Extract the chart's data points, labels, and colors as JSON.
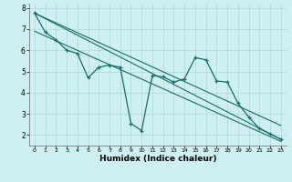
{
  "bg_color": "#cef0f0",
  "grid_color": "#afd8d8",
  "line_color": "#1a6b6b",
  "xlabel": "Humidex (Indice chaleur)",
  "xlim": [
    -0.5,
    23.5
  ],
  "ylim": [
    1.5,
    8.2
  ],
  "xticks": [
    0,
    1,
    2,
    3,
    4,
    5,
    6,
    7,
    8,
    9,
    10,
    11,
    12,
    13,
    14,
    15,
    16,
    17,
    18,
    19,
    20,
    21,
    22,
    23
  ],
  "yticks": [
    2,
    3,
    4,
    5,
    6,
    7,
    8
  ],
  "series1": {
    "x": [
      0,
      1,
      2,
      3,
      4,
      5,
      6,
      7,
      8,
      9,
      10,
      11,
      12,
      13,
      14,
      15,
      16,
      17,
      18,
      19,
      20,
      21,
      22,
      23
    ],
    "y": [
      7.75,
      6.85,
      6.5,
      6.0,
      5.85,
      4.7,
      5.2,
      5.3,
      5.2,
      2.55,
      2.2,
      4.8,
      4.75,
      4.5,
      4.65,
      5.65,
      5.55,
      4.55,
      4.5,
      3.5,
      2.85,
      2.3,
      2.05,
      1.8
    ]
  },
  "line1_y": [
    7.75,
    1.8
  ],
  "line2_y": [
    7.75,
    2.45
  ],
  "line3_y": [
    6.9,
    1.7
  ]
}
